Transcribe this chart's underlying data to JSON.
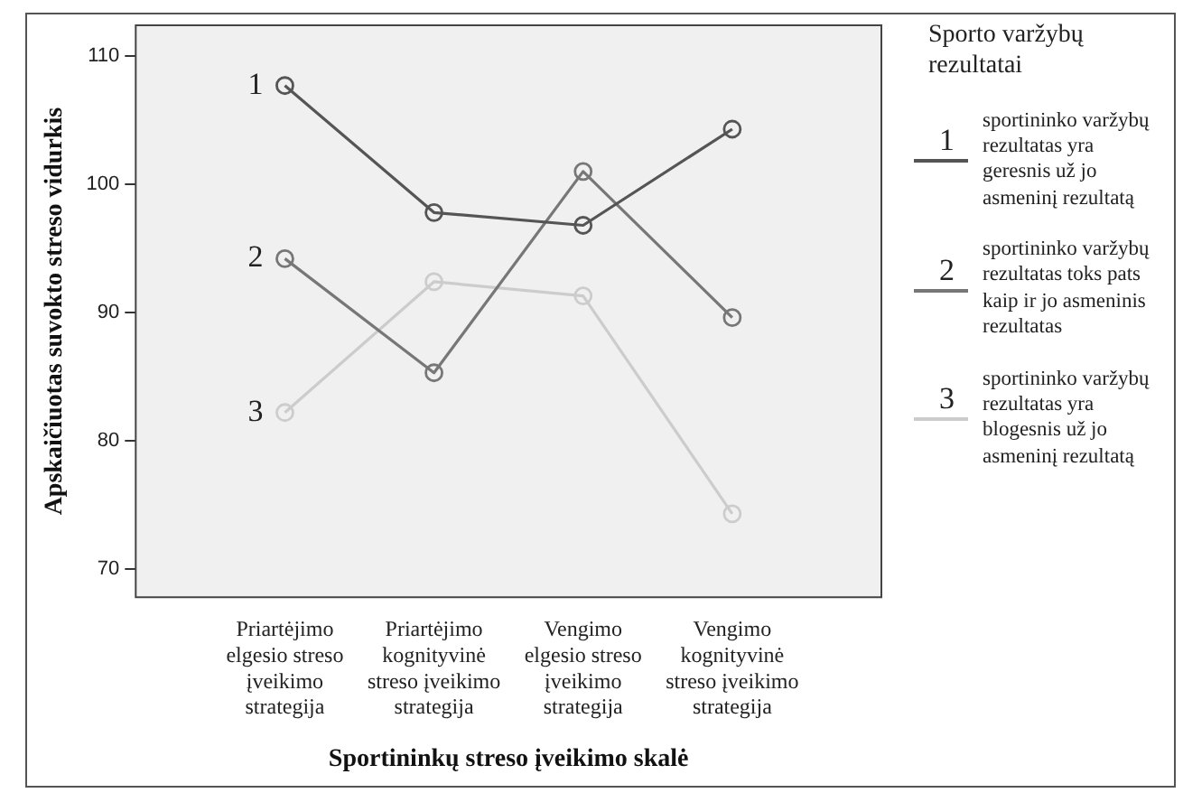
{
  "chart_data": {
    "type": "line",
    "xlabel": "Sportininkų streso įveikimo skalė",
    "ylabel": "Apskaičiuotas suvokto streso vidurkis",
    "legend_title": "Sporto varžybų rezultatai",
    "categories": [
      "Priartėjimo elgesio streso įveikimo strategija",
      "Priartėjimo kognityvinė streso įveikimo strategija",
      "Vengimo elgesio streso įveikimo strategija",
      "Vengimo kognityvinė streso įveikimo strategija"
    ],
    "series": [
      {
        "name": "sportininko varžybų rezultatas yra geresnis už jo asmeninį rezultatą",
        "color": "#555555",
        "values": [
          107.7,
          97.8,
          96.8,
          104.3
        ]
      },
      {
        "name": "sportininko varžybų rezultatas toks pats kaip ir jo asmeninis rezultatas",
        "color": "#777777",
        "values": [
          94.2,
          85.3,
          101.0,
          89.6
        ]
      },
      {
        "name": "sportininko varžybų rezultatas yra blogesnis už jo asmeninį rezultatą",
        "color": "#cccccc",
        "values": [
          82.2,
          92.4,
          91.3,
          74.3
        ]
      }
    ],
    "annotations": [
      {
        "text": "1",
        "x": "Priartėjimo elgesio streso įveikimo strategija",
        "y": 107.7
      },
      {
        "text": "2",
        "x": "Priartėjimo elgesio streso įveikimo strategija",
        "y": 94.2
      },
      {
        "text": "3",
        "x": "Priartėjimo elgesio streso įveikimo strategija",
        "y": 82.2
      }
    ],
    "ylim": [
      67.8,
      112.4
    ],
    "yticks": [
      70,
      80,
      90,
      100,
      110
    ],
    "grid": false,
    "legend": "right",
    "marker": "circle",
    "line_style": "solid"
  }
}
